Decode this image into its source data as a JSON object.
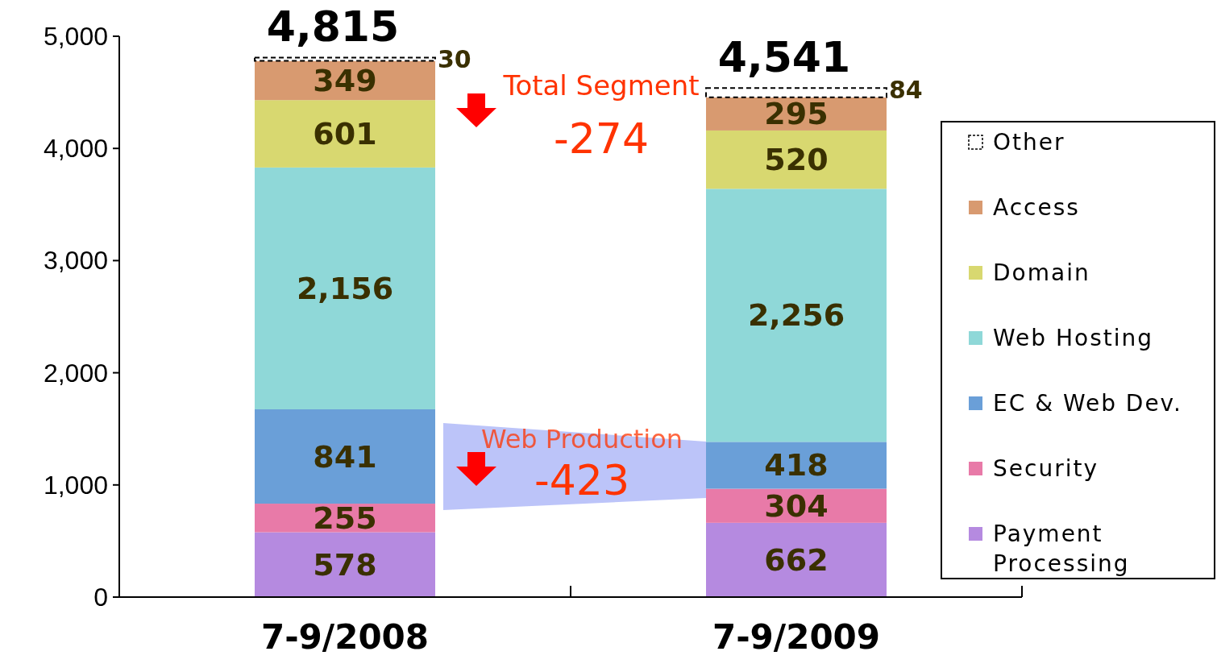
{
  "chart_data": {
    "type": "bar",
    "stacked": true,
    "categories": [
      "7-9/2008",
      "7-9/2009"
    ],
    "series": [
      {
        "name": "Payment Processing",
        "color": "#b58ae0",
        "values": [
          578,
          662
        ],
        "value_labels": [
          "578",
          "662"
        ]
      },
      {
        "name": "Security",
        "color": "#e87aa8",
        "values": [
          255,
          304
        ],
        "value_labels": [
          "255",
          "304"
        ]
      },
      {
        "name": "EC & Web Dev.",
        "color": "#6a9fd8",
        "values": [
          841,
          418
        ],
        "value_labels": [
          "841",
          "418"
        ]
      },
      {
        "name": "Web Hosting",
        "color": "#8fd8d8",
        "values": [
          2156,
          2256
        ],
        "value_labels": [
          "2,156",
          "2,256"
        ]
      },
      {
        "name": "Domain",
        "color": "#d8d870",
        "values": [
          601,
          520
        ],
        "value_labels": [
          "601",
          "520"
        ]
      },
      {
        "name": "Access",
        "color": "#d89a70",
        "values": [
          349,
          295
        ],
        "value_labels": [
          "349",
          "295"
        ]
      },
      {
        "name": "Other",
        "color": "#ffffff",
        "line_style": "dashed",
        "values": [
          30,
          84
        ],
        "value_labels": [
          "30",
          "84"
        ]
      }
    ],
    "ylim": [
      0,
      5000
    ],
    "yticks": [
      0,
      {
        "value": 1000,
        "label": "1,000"
      },
      {
        "value": 2000,
        "label": "2,000"
      },
      {
        "value": 3000,
        "label": "3,000"
      },
      {
        "value": 4000,
        "label": "4,000"
      },
      {
        "value": 5000,
        "label": "5,000"
      }
    ],
    "grid": false,
    "legend": "right",
    "annotations": [
      "4,815",
      "4,541",
      "Total Segment",
      "-274",
      "Web Production",
      "-423"
    ]
  }
}
